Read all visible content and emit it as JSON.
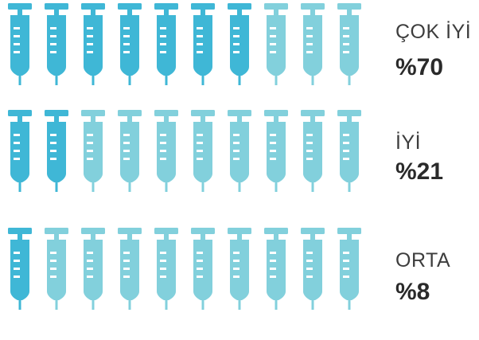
{
  "chart_data": {
    "type": "bar",
    "icons_per_row": 10,
    "categories": [
      "ÇOK İYİ",
      "İYİ",
      "ORTA"
    ],
    "value_labels": [
      "%70",
      "%21",
      "%8"
    ],
    "values": [
      70,
      21,
      8
    ],
    "filled_icons": [
      7,
      2,
      1
    ],
    "colors": {
      "filled": "#3fb7d6",
      "empty": "#82d0dc"
    }
  }
}
